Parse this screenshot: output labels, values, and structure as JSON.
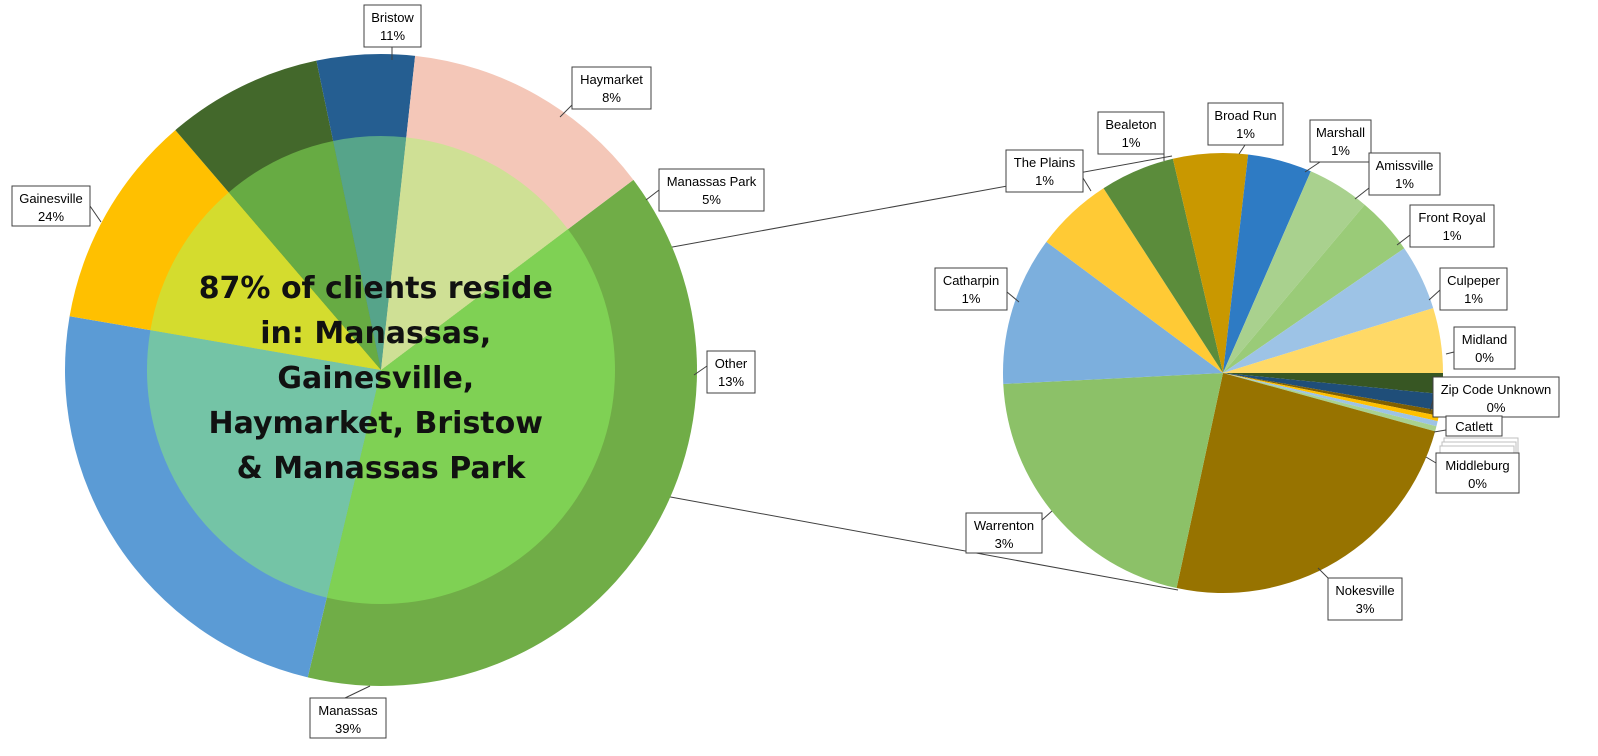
{
  "chart_data": {
    "type": "pie",
    "subtype": "pie-of-pie",
    "center_annotation": [
      "87% of clients reside",
      "in: Manassas,",
      "Gainesville,",
      "Haymarket, Bristow",
      "& Manassas Park"
    ],
    "main_pie": {
      "start_angle_deg": 37,
      "slices": [
        {
          "name": "Manassas",
          "percent_label": "39%",
          "value": 39,
          "color": "#70AD47",
          "inner_color": "#7FD154"
        },
        {
          "name": "Gainesville",
          "percent_label": "24%",
          "value": 24,
          "color": "#5B9BD5",
          "inner_color": "#74C4A6"
        },
        {
          "name": "Bristow",
          "percent_label": "11%",
          "value": 11,
          "color": "#FFC000",
          "inner_color": "#D4DC2E"
        },
        {
          "name": "Haymarket",
          "percent_label": "8%",
          "value": 8,
          "color": "#43682B",
          "inner_color": "#67AB43"
        },
        {
          "name": "Manassas Park",
          "percent_label": "5%",
          "value": 5,
          "color": "#255E91",
          "inner_color": "#56A48A"
        },
        {
          "name": "Other",
          "percent_label": "13%",
          "value": 13,
          "color": "#F4C7B8",
          "inner_color": "#CFE095"
        }
      ]
    },
    "secondary_pie": {
      "start_angle_deg": 90,
      "slices": [
        {
          "name": "Zip Code Unknown",
          "percent_label": "0%",
          "value": 1.4,
          "color": "#375623"
        },
        {
          "name": "Catlett",
          "percent_label": "",
          "value": 1.1,
          "color": "#1F4E79"
        },
        {
          "name": "",
          "percent_label": "",
          "value": 0.35,
          "color": "#806000"
        },
        {
          "name": "",
          "percent_label": "",
          "value": 0.35,
          "color": "#FFC000"
        },
        {
          "name": "",
          "percent_label": "",
          "value": 0.35,
          "color": "#9DC3E6"
        },
        {
          "name": "Middleburg",
          "percent_label": "0%",
          "value": 0.35,
          "color": "#A9D18E"
        },
        {
          "name": "Nokesville",
          "percent_label": "3%",
          "value": 22.0,
          "color": "#977300"
        },
        {
          "name": "Warrenton",
          "percent_label": "3%",
          "value": 19.0,
          "color": "#8CC168"
        },
        {
          "name": "Catharpin",
          "percent_label": "1%",
          "value": 10.0,
          "color": "#7CAFDD"
        },
        {
          "name": "The Plains",
          "percent_label": "1%",
          "value": 5.2,
          "color": "#FFCA35"
        },
        {
          "name": "Bealeton",
          "percent_label": "1%",
          "value": 5.0,
          "color": "#5B8C3B"
        },
        {
          "name": "Broad Run",
          "percent_label": "1%",
          "value": 5.0,
          "color": "#C99800"
        },
        {
          "name": "Marshall",
          "percent_label": "1%",
          "value": 4.3,
          "color": "#2E7BC4"
        },
        {
          "name": "Amissville",
          "percent_label": "1%",
          "value": 4.2,
          "color": "#A9D18E"
        },
        {
          "name": "Front Royal",
          "percent_label": "1%",
          "value": 3.9,
          "color": "#9ACB78"
        },
        {
          "name": "Culpeper",
          "percent_label": "1%",
          "value": 4.4,
          "color": "#9DC3E6"
        },
        {
          "name": "Midland",
          "percent_label": "0%",
          "value": 4.35,
          "color": "#FFD966"
        }
      ]
    }
  }
}
